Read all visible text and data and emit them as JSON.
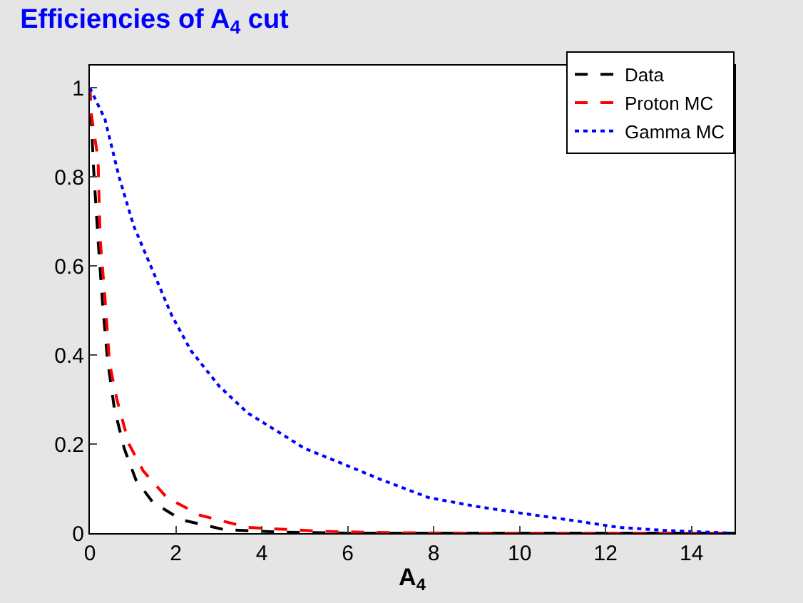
{
  "chart_data": {
    "type": "line",
    "title": "Efficiencies of A$_{4}$ cut",
    "xlabel": "A$_{4}$",
    "xlim": [
      0,
      15
    ],
    "ylim": [
      0,
      1.05
    ],
    "xticks": [
      0,
      2,
      4,
      6,
      8,
      10,
      12,
      14
    ],
    "yticks": [
      0,
      0.2,
      0.4,
      0.6,
      0.8,
      1
    ],
    "legend": "top right",
    "marker": "none",
    "series": [
      {
        "name": "Data",
        "color": "#000000",
        "line_style": "dashed",
        "x": [
          0,
          0.08,
          0.19,
          0.3,
          0.41,
          0.57,
          0.8,
          1.07,
          1.46,
          2.13,
          3.12,
          4.5,
          6,
          8,
          10,
          12,
          15
        ],
        "values": [
          1,
          0.83,
          0.66,
          0.51,
          0.39,
          0.28,
          0.19,
          0.12,
          0.07,
          0.03,
          0.008,
          0.002,
          0,
          0,
          0,
          0,
          0
        ]
      },
      {
        "name": "Proton MC",
        "color": "#ff0000",
        "line_style": "dashed",
        "x": [
          0,
          0.02,
          0.19,
          0.24,
          0.35,
          0.46,
          0.63,
          0.91,
          1.24,
          1.79,
          2.57,
          3.67,
          5.4,
          7,
          9,
          11,
          13,
          15
        ],
        "values": [
          1,
          0.95,
          0.84,
          0.66,
          0.53,
          0.38,
          0.3,
          0.2,
          0.14,
          0.08,
          0.04,
          0.013,
          0.004,
          0.001,
          0,
          0,
          0,
          0
        ]
      },
      {
        "name": "Gamma MC",
        "color": "#0000ff",
        "line_style": "dotted",
        "x": [
          0,
          0.35,
          0.68,
          1.02,
          1.46,
          1.9,
          2.35,
          3.01,
          3.67,
          4.34,
          5.0,
          5.78,
          6.78,
          7.88,
          8.99,
          10.1,
          11.2,
          12.3,
          13.4,
          14.95
        ],
        "values": [
          1,
          0.93,
          0.8,
          0.69,
          0.59,
          0.49,
          0.41,
          0.33,
          0.27,
          0.23,
          0.19,
          0.16,
          0.12,
          0.08,
          0.06,
          0.044,
          0.029,
          0.013,
          0.006,
          0
        ]
      }
    ]
  }
}
